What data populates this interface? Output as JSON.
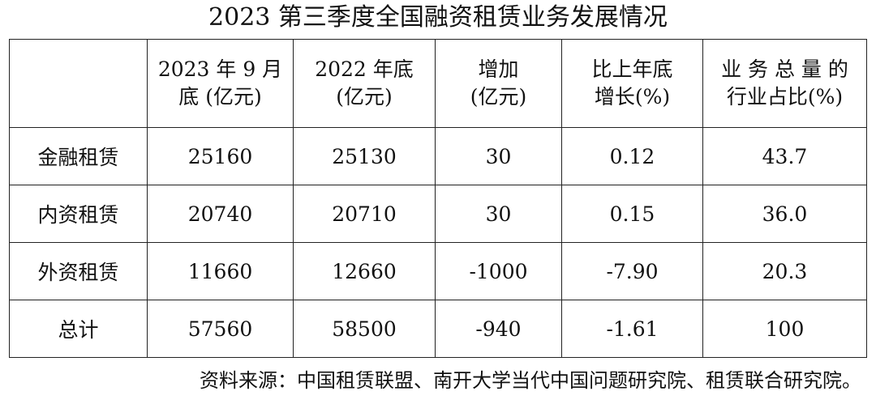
{
  "title": "2023 第三季度全国融资租赁业务发展情况",
  "table": {
    "header": [
      [
        "2023 年 9 月",
        "底 (亿元)"
      ],
      [
        "2022 年底",
        "(亿元)"
      ],
      [
        "增加",
        "(亿元)"
      ],
      [
        "比上年底",
        "增长(%)"
      ],
      [
        "业 务 总 量 的",
        "行业占比(%)"
      ]
    ],
    "rows": [
      [
        "金融租赁",
        "25160",
        "25130",
        "30",
        "0.12",
        "43.7"
      ],
      [
        "内资租赁",
        "20740",
        "20710",
        "30",
        "0.15",
        "36.0"
      ],
      [
        "外资租赁",
        "11660",
        "12660",
        "-1000",
        "-7.90",
        "20.3"
      ],
      [
        "总计",
        "57560",
        "58500",
        "-940",
        "-1.61",
        "100"
      ]
    ]
  },
  "source": "资料来源：中国租赁联盟、南开大学当代中国问题研究院、租赁联合研究院。"
}
